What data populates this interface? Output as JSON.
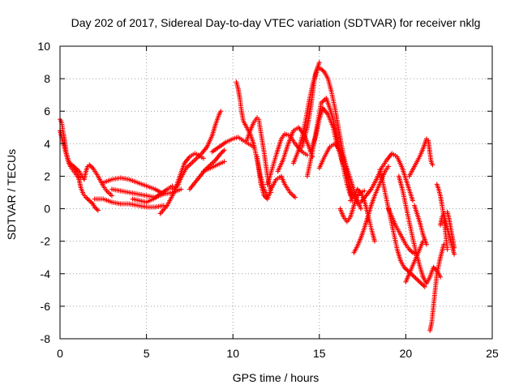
{
  "chart_data": {
    "type": "scatter",
    "title": "Day 202 of 2017, Sidereal Day-to-day VTEC variation (SDTVAR) for receiver nklg",
    "xlabel": "GPS time / hours",
    "ylabel": "SDTVAR / TECUs",
    "xlim": [
      0,
      25
    ],
    "ylim": [
      -8,
      10
    ],
    "xticks": [
      "0",
      "5",
      "10",
      "15",
      "20",
      "25"
    ],
    "yticks": [
      "-8",
      "-6",
      "-4",
      "-2",
      "0",
      "2",
      "4",
      "6",
      "8",
      "10"
    ],
    "grid": true,
    "marker": "plus",
    "color": "#ff0000",
    "series": [
      {
        "x": [
          0.0,
          0.1,
          0.2,
          0.3,
          0.35,
          0.45,
          0.55,
          0.7,
          0.85,
          1.0,
          1.1,
          1.2,
          1.35,
          1.5,
          1.7,
          1.9,
          2.0,
          2.2
        ],
        "y": [
          5.5,
          5.3,
          4.6,
          4.0,
          3.5,
          3.1,
          2.8,
          2.7,
          2.5,
          2.2,
          1.8,
          1.3,
          0.9,
          0.7,
          0.5,
          0.3,
          0.1,
          -0.1
        ]
      },
      {
        "x": [
          0.0,
          0.15,
          0.3,
          0.45,
          0.6,
          0.8,
          1.0,
          1.2
        ],
        "y": [
          4.8,
          4.2,
          3.6,
          3.0,
          2.6,
          2.3,
          2.0,
          1.9
        ]
      },
      {
        "x": [
          0.5,
          0.8,
          1.1,
          1.4,
          1.5,
          1.6,
          1.7,
          1.9,
          2.2,
          2.5,
          2.7,
          3.0
        ],
        "y": [
          2.8,
          2.6,
          2.3,
          1.8,
          2.3,
          2.6,
          2.7,
          2.5,
          2.0,
          1.4,
          1.1,
          0.8
        ]
      },
      {
        "x": [
          2.0,
          2.5,
          3.0,
          3.5,
          4.0,
          4.5,
          5.0,
          5.5,
          6.0
        ],
        "y": [
          0.6,
          0.6,
          0.4,
          0.3,
          0.3,
          0.2,
          0.1,
          0.1,
          0.2
        ]
      },
      {
        "x": [
          2.5,
          3.0,
          3.5,
          4.0,
          4.5,
          5.0,
          5.5,
          6.0
        ],
        "y": [
          1.6,
          1.8,
          1.9,
          1.8,
          1.6,
          1.4,
          1.2,
          0.9
        ]
      },
      {
        "x": [
          3.0,
          3.5,
          4.0,
          4.5,
          5.0,
          5.5,
          6.0,
          6.5,
          7.0
        ],
        "y": [
          1.2,
          1.1,
          1.0,
          0.9,
          0.8,
          0.7,
          0.9,
          1.0,
          1.2
        ]
      },
      {
        "x": [
          4.2,
          4.6,
          5.0,
          5.4,
          5.8,
          6.2,
          6.5
        ],
        "y": [
          0.6,
          0.5,
          0.4,
          0.6,
          0.9,
          1.2,
          1.4
        ]
      },
      {
        "x": [
          5.8,
          6.2,
          6.6,
          6.8,
          7.0,
          7.2,
          7.5,
          7.8,
          8.0,
          8.3
        ],
        "y": [
          -0.3,
          0.2,
          1.0,
          1.6,
          2.2,
          2.8,
          3.2,
          3.4,
          3.3,
          3.1
        ]
      },
      {
        "x": [
          6.5,
          6.8,
          7.0,
          7.3,
          7.6,
          7.9,
          8.2,
          8.5,
          8.8,
          9.0,
          9.2,
          9.3
        ],
        "y": [
          1.2,
          1.4,
          1.9,
          2.5,
          2.8,
          3.1,
          3.4,
          3.8,
          4.5,
          5.2,
          5.8,
          6.0
        ]
      },
      {
        "x": [
          7.5,
          7.8,
          8.1,
          8.4,
          8.7,
          9.0,
          9.3,
          9.5
        ],
        "y": [
          1.2,
          1.6,
          2.0,
          2.4,
          2.7,
          3.0,
          3.4,
          3.6
        ]
      },
      {
        "x": [
          8.3,
          8.7,
          9.1,
          9.5
        ],
        "y": [
          2.3,
          2.5,
          2.7,
          2.9
        ]
      },
      {
        "x": [
          8.8,
          9.2,
          9.6,
          10.0,
          10.3,
          10.6,
          10.9,
          11.2
        ],
        "y": [
          3.5,
          3.8,
          4.1,
          4.3,
          4.4,
          4.2,
          4.0,
          3.8
        ]
      },
      {
        "x": [
          10.2,
          10.3,
          10.4,
          10.5,
          10.6,
          10.8,
          11.0,
          11.2,
          11.4,
          11.6,
          11.8,
          12.0
        ],
        "y": [
          7.8,
          7.4,
          6.8,
          6.0,
          5.4,
          5.0,
          4.6,
          4.0,
          3.0,
          2.0,
          1.2,
          0.8
        ]
      },
      {
        "x": [
          10.8,
          11.0,
          11.2,
          11.4,
          11.5,
          11.6,
          11.8,
          12.0,
          12.2
        ],
        "y": [
          4.2,
          4.8,
          5.3,
          5.6,
          5.5,
          4.8,
          3.5,
          2.0,
          1.0
        ]
      },
      {
        "x": [
          11.4,
          11.5,
          11.6,
          11.8,
          12.0,
          12.2,
          12.5,
          12.8,
          13.0,
          13.3,
          13.6
        ],
        "y": [
          3.2,
          2.4,
          1.6,
          0.8,
          0.6,
          1.2,
          1.8,
          2.0,
          1.5,
          1.0,
          0.7
        ]
      },
      {
        "x": [
          12.0,
          12.2,
          12.5,
          12.8,
          13.0,
          13.3,
          13.6,
          14.0,
          14.3
        ],
        "y": [
          1.5,
          2.2,
          3.3,
          4.3,
          4.6,
          4.5,
          4.0,
          3.5,
          3.3
        ]
      },
      {
        "x": [
          12.6,
          12.9,
          13.2,
          13.5,
          13.8,
          14.1,
          14.4,
          14.6
        ],
        "y": [
          2.3,
          3.0,
          4.0,
          4.8,
          5.0,
          4.6,
          3.8,
          3.2
        ]
      },
      {
        "x": [
          13.5,
          13.8,
          14.0,
          14.2,
          14.4,
          14.6,
          14.8,
          15.0
        ],
        "y": [
          2.8,
          3.6,
          4.4,
          5.4,
          6.6,
          7.6,
          8.4,
          9.0
        ]
      },
      {
        "x": [
          14.0,
          14.3,
          14.5,
          14.7,
          14.9,
          15.1,
          15.3,
          15.5,
          15.7,
          15.9,
          16.1,
          16.3,
          16.5,
          16.7,
          16.9
        ],
        "y": [
          3.8,
          5.0,
          6.2,
          7.8,
          8.7,
          8.6,
          8.4,
          8.0,
          7.2,
          6.2,
          5.0,
          3.8,
          2.8,
          1.5,
          0.5
        ]
      },
      {
        "x": [
          14.3,
          14.6,
          14.9,
          15.1,
          15.4,
          15.6,
          15.8,
          16.0,
          16.2,
          16.4,
          16.6,
          16.8
        ],
        "y": [
          2.0,
          3.5,
          5.3,
          6.5,
          6.8,
          6.2,
          5.5,
          4.5,
          3.5,
          2.5,
          1.5,
          0.8
        ]
      },
      {
        "x": [
          14.5,
          14.8,
          15.0,
          15.2,
          15.5,
          15.8,
          16.0,
          16.3,
          16.6,
          16.9,
          17.2
        ],
        "y": [
          3.5,
          4.5,
          5.5,
          6.2,
          5.8,
          5.0,
          4.0,
          3.0,
          2.0,
          1.0,
          0.3
        ]
      },
      {
        "x": [
          15.0,
          15.3,
          15.6,
          15.9,
          16.2,
          16.5,
          16.8,
          17.1,
          17.4
        ],
        "y": [
          2.5,
          3.2,
          3.8,
          4.0,
          3.6,
          2.8,
          1.8,
          0.8,
          0.0
        ]
      },
      {
        "x": [
          16.2,
          16.4,
          16.6,
          16.8,
          17.0,
          17.2,
          17.4,
          17.6
        ],
        "y": [
          0.0,
          -0.5,
          -0.8,
          -0.5,
          0.2,
          0.8,
          1.0,
          1.1
        ]
      },
      {
        "x": [
          16.8,
          17.0,
          17.2,
          17.4,
          17.6,
          17.8,
          18.0,
          18.2
        ],
        "y": [
          0.5,
          0.8,
          1.2,
          1.0,
          0.5,
          -0.3,
          -1.2,
          -2.0
        ]
      },
      {
        "x": [
          17.0,
          17.2,
          17.4,
          17.6,
          17.8,
          18.0,
          18.2,
          18.4,
          18.6,
          18.8,
          19.0
        ],
        "y": [
          -2.7,
          -2.3,
          -1.8,
          -1.2,
          -0.5,
          0.2,
          0.8,
          1.3,
          1.8,
          2.3,
          2.6
        ]
      },
      {
        "x": [
          17.4,
          17.7,
          18.0,
          18.3,
          18.6,
          18.9,
          19.2,
          19.5,
          19.8,
          20.1,
          20.4
        ],
        "y": [
          0.4,
          0.8,
          1.2,
          1.8,
          2.5,
          3.0,
          3.4,
          3.2,
          2.5,
          1.5,
          0.5
        ]
      },
      {
        "x": [
          18.5,
          18.7,
          18.9,
          19.1,
          19.3,
          19.5,
          19.7,
          19.9,
          20.1,
          20.3,
          20.5,
          20.7,
          20.9,
          21.1
        ],
        "y": [
          2.4,
          1.5,
          0.5,
          -0.5,
          -1.5,
          -2.5,
          -3.2,
          -3.6,
          -3.8,
          -4.0,
          -4.2,
          -4.4,
          -4.6,
          -4.8
        ]
      },
      {
        "x": [
          19.0,
          19.2,
          19.4,
          19.6,
          19.8,
          20.0,
          20.2,
          20.4,
          20.6
        ],
        "y": [
          0.0,
          -0.5,
          -1.0,
          -1.4,
          -1.8,
          -2.2,
          -2.5,
          -2.7,
          -2.8
        ]
      },
      {
        "x": [
          19.6,
          19.8,
          20.0,
          20.2,
          20.4,
          20.6,
          20.8,
          21.0
        ],
        "y": [
          2.0,
          1.2,
          0.2,
          -0.8,
          -1.8,
          -2.7,
          -3.5,
          -4.2
        ]
      },
      {
        "x": [
          20.2,
          20.4,
          20.6,
          20.8,
          21.0,
          21.2
        ],
        "y": [
          2.0,
          2.4,
          2.8,
          3.2,
          3.7,
          4.3
        ]
      },
      {
        "x": [
          20.0,
          20.2,
          20.4,
          20.6,
          20.8,
          21.0
        ],
        "y": [
          -4.5,
          -4.0,
          -3.5,
          -3.0,
          -2.5,
          -2.0
        ]
      },
      {
        "x": [
          21.3,
          21.35,
          21.4,
          21.45,
          21.5,
          21.55
        ],
        "y": [
          4.2,
          3.8,
          3.4,
          3.0,
          2.8,
          2.7
        ]
      },
      {
        "x": [
          21.4,
          21.5,
          21.6,
          21.7,
          21.8,
          21.9,
          22.0,
          22.1,
          22.2
        ],
        "y": [
          -7.5,
          -7.0,
          -6.0,
          -5.0,
          -4.0,
          -3.5,
          -3.0,
          -2.6,
          -2.2
        ]
      },
      {
        "x": [
          21.0,
          21.2,
          21.4,
          21.6,
          21.8,
          22.0
        ],
        "y": [
          -4.2,
          -4.6,
          -4.2,
          -3.6,
          -3.8,
          -4.2
        ]
      },
      {
        "x": [
          21.8,
          21.9,
          22.0,
          22.1,
          22.2,
          22.3,
          22.4
        ],
        "y": [
          1.5,
          1.2,
          0.8,
          0.2,
          -0.5,
          -1.5,
          -2.5
        ]
      },
      {
        "x": [
          22.0,
          22.1,
          22.2,
          22.3,
          22.4,
          22.5,
          22.6,
          22.7,
          22.8
        ],
        "y": [
          -1.0,
          -0.5,
          -0.3,
          -0.8,
          -1.2,
          -1.6,
          -2.0,
          -2.4,
          -2.8
        ]
      },
      {
        "x": [
          22.4,
          22.5,
          22.6,
          22.7,
          22.8
        ],
        "y": [
          -0.2,
          -0.6,
          -1.2,
          -1.8,
          -2.4
        ]
      },
      {
        "x": [
          20.5,
          20.8,
          21.0,
          21.2
        ],
        "y": [
          0.2,
          -0.8,
          -1.6,
          -2.2
        ]
      }
    ]
  }
}
